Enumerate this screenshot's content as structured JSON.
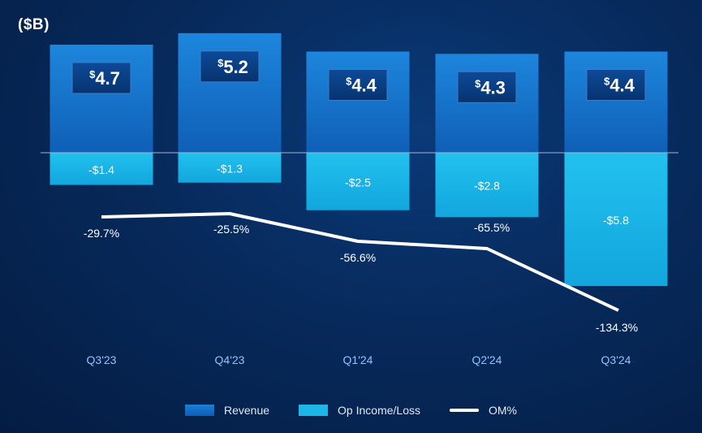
{
  "unit_label": "($B)",
  "chart_data": {
    "type": "bar",
    "categories": [
      "Q3'23",
      "Q4'23",
      "Q1'24",
      "Q2'24",
      "Q3'24"
    ],
    "series": [
      {
        "name": "Revenue",
        "values": [
          4.7,
          5.2,
          4.4,
          4.3,
          4.4
        ],
        "labels": [
          "4.7",
          "5.2",
          "4.4",
          "4.3",
          "4.4"
        ],
        "currency": "$"
      },
      {
        "name": "Op Income/Loss",
        "values": [
          -1.4,
          -1.3,
          -2.5,
          -2.8,
          -5.8
        ],
        "labels": [
          "-$1.4",
          "-$1.3",
          "-$2.5",
          "-$2.8",
          "-$5.8"
        ]
      },
      {
        "name": "OM%",
        "values": [
          -29.7,
          -25.5,
          -56.6,
          -65.5,
          -134.3
        ],
        "labels": [
          "-29.7%",
          "-25.5%",
          "-56.6%",
          "-65.5%",
          "-134.3%"
        ],
        "render": "line"
      }
    ],
    "colors": {
      "revenue": "#1680d8",
      "op": "#19b3e6",
      "line": "#ffffff",
      "tick": "#8fc3ff"
    }
  },
  "legend": [
    {
      "label": "Revenue",
      "swatch": "revenue"
    },
    {
      "label": "Op Income/Loss",
      "swatch": "op"
    },
    {
      "label": "OM%",
      "swatch": "line"
    }
  ]
}
